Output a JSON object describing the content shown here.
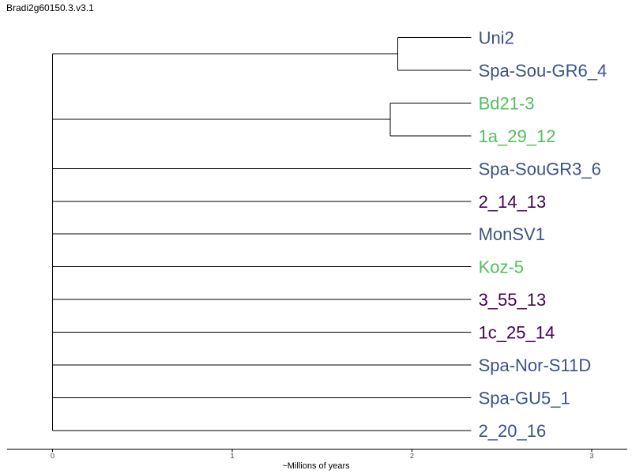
{
  "title": "Bradi2g60150.3.v3.1",
  "axis": {
    "label": "~Millions of years",
    "ticks": [
      "0",
      "1",
      "2",
      "3"
    ],
    "range": [
      0,
      3.2
    ]
  },
  "colors": {
    "blue": "#3b5289",
    "green": "#52c05a",
    "purple": "#440154"
  },
  "tips": [
    {
      "label": "Uni2",
      "color": "#3b5289"
    },
    {
      "label": "Spa-Sou-GR6_4",
      "color": "#3b5289"
    },
    {
      "label": "Bd21-3",
      "color": "#52c05a"
    },
    {
      "label": "1a_29_12",
      "color": "#52c05a"
    },
    {
      "label": "Spa-SouGR3_6",
      "color": "#3b5289"
    },
    {
      "label": "2_14_13",
      "color": "#440154"
    },
    {
      "label": "MonSV1",
      "color": "#3b5289"
    },
    {
      "label": "Koz-5",
      "color": "#52c05a"
    },
    {
      "label": "3_55_13",
      "color": "#440154"
    },
    {
      "label": "1c_25_14",
      "color": "#440154"
    },
    {
      "label": "Spa-Nor-S11D",
      "color": "#3b5289"
    },
    {
      "label": "Spa-GU5_1",
      "color": "#3b5289"
    },
    {
      "label": "2_20_16",
      "color": "#3b5289"
    }
  ],
  "clades": [
    {
      "tips": [
        0,
        1
      ],
      "node_x": 1.92
    },
    {
      "tips": [
        2,
        3
      ],
      "node_x": 1.88
    }
  ],
  "root_x": 0,
  "tip_x": 2.33
}
